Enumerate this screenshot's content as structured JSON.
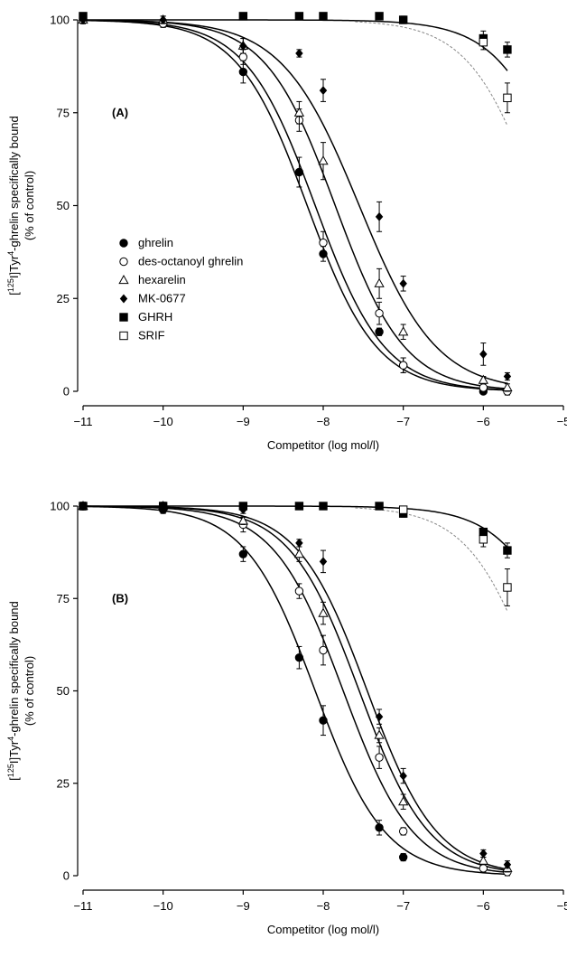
{
  "chart_data": [
    {
      "type": "scatter",
      "panel_label": "(A)",
      "xlabel": "Competitor (log mol/l)",
      "ylabel_prefix": "[",
      "ylabel_sup1": "125",
      "ylabel_mid": "I]Tyr",
      "ylabel_sup2": "4",
      "ylabel_suffix": "-ghrelin specifically bound",
      "ylabel_line2": "(% of control)",
      "xlim": [
        -11,
        -5
      ],
      "ylim": [
        0,
        100
      ],
      "xticks": [
        -11,
        -10,
        -9,
        -8,
        -7,
        -6,
        -5
      ],
      "xtick_labels": [
        "−11",
        "−10",
        "−9",
        "−8",
        "−7",
        "−6",
        "−5"
      ],
      "yticks": [
        0,
        25,
        50,
        75,
        100
      ],
      "ytick_labels": [
        "0",
        "25",
        "50",
        "75",
        "100"
      ],
      "legend_position": "left-center",
      "series": [
        {
          "name": "ghrelin",
          "marker": "circle-filled",
          "ic50_log": -8.2,
          "hill": 1.0,
          "x": [
            -11,
            -10,
            -9,
            -8.3,
            -8,
            -7.3,
            -7,
            -6
          ],
          "y": [
            100,
            99,
            86,
            59,
            37,
            16,
            7,
            0
          ],
          "err": [
            1,
            1,
            3,
            4,
            2,
            1,
            2,
            0
          ]
        },
        {
          "name": "des-octanoyl ghrelin",
          "marker": "circle-open",
          "ic50_log": -8.1,
          "hill": 1.0,
          "x": [
            -11,
            -10,
            -9,
            -8.3,
            -8,
            -7.3,
            -7,
            -6,
            -5.7
          ],
          "y": [
            100,
            99,
            90,
            73,
            40,
            21,
            7,
            1,
            0
          ],
          "err": [
            1,
            1,
            2,
            3,
            3,
            3,
            2,
            1,
            1
          ]
        },
        {
          "name": "hexarelin",
          "marker": "triangle-open",
          "ic50_log": -7.85,
          "hill": 1.0,
          "x": [
            -11,
            -10,
            -9,
            -8.3,
            -8,
            -7.3,
            -7,
            -6,
            -5.7
          ],
          "y": [
            100,
            100,
            93,
            75,
            62,
            29,
            16,
            3,
            1
          ],
          "err": [
            1,
            1,
            2,
            3,
            5,
            4,
            2,
            1,
            1
          ]
        },
        {
          "name": "MK-0677",
          "marker": "diamond-filled",
          "ic50_log": -7.55,
          "hill": 0.9,
          "x": [
            -11,
            -10,
            -9,
            -8.3,
            -8,
            -7.3,
            -7,
            -6,
            -5.7
          ],
          "y": [
            100,
            100,
            93,
            91,
            81,
            47,
            29,
            10,
            4
          ],
          "err": [
            1,
            1,
            2,
            1,
            3,
            4,
            2,
            3,
            1
          ]
        },
        {
          "name": "GHRH",
          "marker": "square-filled",
          "ic50_log": -4.9,
          "hill": 1.0,
          "x": [
            -11,
            -9,
            -8.3,
            -8,
            -7.3,
            -7,
            -6,
            -5.7
          ],
          "y": [
            101,
            101,
            101,
            101,
            101,
            100,
            95,
            92
          ],
          "err": [
            0,
            0,
            0,
            0,
            0,
            1,
            2,
            2
          ]
        },
        {
          "name": "SRIF",
          "marker": "square-open",
          "ic50_log": -5.3,
          "hill": 1.0,
          "x": [
            -6,
            -5.7
          ],
          "y": [
            94,
            79
          ],
          "err": [
            2,
            4
          ]
        }
      ]
    },
    {
      "type": "scatter",
      "panel_label": "(B)",
      "xlabel": "Competitor (log mol/l)",
      "ylabel_prefix": "[",
      "ylabel_sup1": "125",
      "ylabel_mid": "I]Tyr",
      "ylabel_sup2": "4",
      "ylabel_suffix": "-ghrelin specifically bound",
      "ylabel_line2": "(% of control)",
      "xlim": [
        -11,
        -5
      ],
      "ylim": [
        0,
        100
      ],
      "xticks": [
        -11,
        -10,
        -9,
        -8,
        -7,
        -6,
        -5
      ],
      "xtick_labels": [
        "−11",
        "−10",
        "−9",
        "−8",
        "−7",
        "−6",
        "−5"
      ],
      "yticks": [
        0,
        25,
        50,
        75,
        100
      ],
      "ytick_labels": [
        "0",
        "25",
        "50",
        "75",
        "100"
      ],
      "series": [
        {
          "name": "ghrelin",
          "marker": "circle-filled",
          "ic50_log": -8.1,
          "hill": 1.0,
          "x": [
            -11,
            -10,
            -9,
            -8.3,
            -8,
            -7.3,
            -7
          ],
          "y": [
            100,
            99,
            87,
            59,
            42,
            13,
            5
          ],
          "err": [
            1,
            1,
            2,
            3,
            4,
            2,
            1
          ]
        },
        {
          "name": "des-octanoyl ghrelin",
          "marker": "circle-open",
          "ic50_log": -7.75,
          "hill": 1.0,
          "x": [
            -11,
            -10,
            -9,
            -8.3,
            -8,
            -7.3,
            -7,
            -6,
            -5.7
          ],
          "y": [
            100,
            100,
            95,
            77,
            61,
            32,
            12,
            2,
            1
          ],
          "err": [
            1,
            1,
            2,
            2,
            4,
            3,
            1,
            1,
            1
          ]
        },
        {
          "name": "hexarelin",
          "marker": "triangle-open",
          "ic50_log": -7.55,
          "hill": 1.0,
          "x": [
            -11,
            -10,
            -9,
            -8.3,
            -8,
            -7.3,
            -7,
            -6,
            -5.7
          ],
          "y": [
            100,
            100,
            96,
            87,
            71,
            38,
            20,
            4,
            2
          ],
          "err": [
            1,
            1,
            1,
            2,
            3,
            2,
            2,
            1,
            1
          ]
        },
        {
          "name": "MK-0677",
          "marker": "diamond-filled",
          "ic50_log": -7.45,
          "hill": 1.0,
          "x": [
            -11,
            -10,
            -9,
            -8.3,
            -8,
            -7.3,
            -7,
            -6,
            -5.7
          ],
          "y": [
            100,
            100,
            99,
            90,
            85,
            43,
            27,
            6,
            3
          ],
          "err": [
            1,
            1,
            1,
            1,
            3,
            2,
            2,
            1,
            1
          ]
        },
        {
          "name": "GHRH",
          "marker": "square-filled",
          "ic50_log": -4.8,
          "hill": 1.0,
          "x": [
            -11,
            -10,
            -9,
            -8.3,
            -8,
            -7.3,
            -7,
            -6,
            -5.7
          ],
          "y": [
            100,
            100,
            100,
            100,
            100,
            100,
            98,
            93,
            88
          ],
          "err": [
            0,
            0,
            0,
            0,
            0,
            0,
            1,
            1,
            2
          ]
        },
        {
          "name": "SRIF",
          "marker": "square-open",
          "ic50_log": -5.3,
          "hill": 1.0,
          "x": [
            -7,
            -6,
            -5.7
          ],
          "y": [
            99,
            91,
            78
          ],
          "err": [
            1,
            2,
            5
          ]
        }
      ]
    }
  ]
}
